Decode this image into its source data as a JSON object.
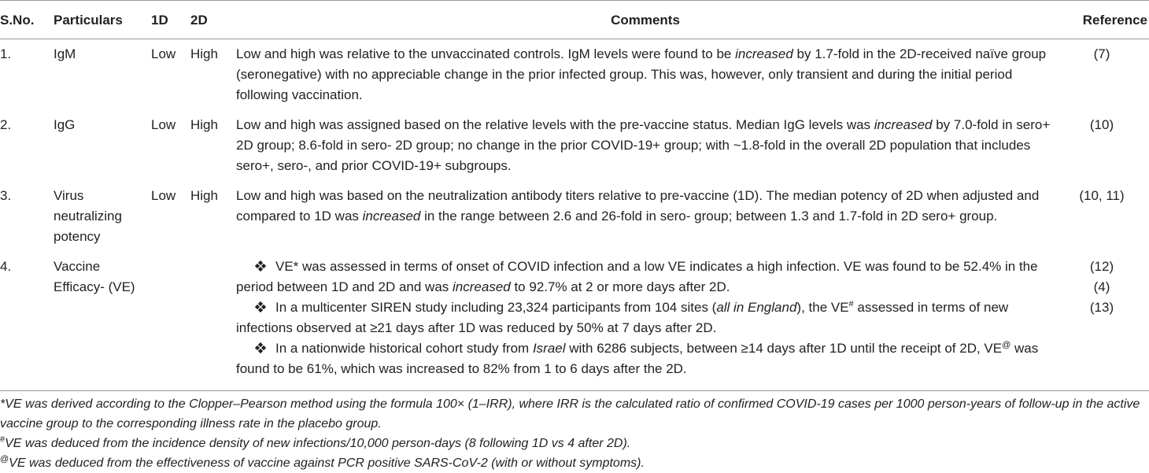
{
  "table": {
    "headers": [
      "S.No.",
      "Particulars",
      "1D",
      "2D",
      "Comments",
      "Reference"
    ],
    "rows": [
      {
        "sno": "1.",
        "particulars": "IgM",
        "d1": "Low",
        "d2": "High",
        "comments": [
          [
            {
              "text": "Low and high was relative to the unvaccinated controls. IgM levels were found to be "
            },
            {
              "text": "increased",
              "italic": true
            },
            {
              "text": " by 1.7-fold in the 2D-received naïve group (seronegative) with no appreciable change in the prior infected group. This was, however, only transient and during the initial period following vaccination."
            }
          ]
        ],
        "reference": [
          "(7)"
        ]
      },
      {
        "sno": "2.",
        "particulars": "IgG",
        "d1": "Low",
        "d2": "High",
        "comments": [
          [
            {
              "text": "Low and high was assigned based on the relative levels with the pre-vaccine status. Median IgG levels was "
            },
            {
              "text": "increased",
              "italic": true
            },
            {
              "text": " by 7.0-fold in sero+ 2D group; 8.6-fold in sero- 2D group; no change in the prior COVID-19+ group; with ~1.8-fold in the overall 2D population that includes sero+, sero-, and prior COVID-19+ subgroups."
            }
          ]
        ],
        "reference": [
          "(10)"
        ]
      },
      {
        "sno": "3.",
        "particulars": "Virus neutralizing potency",
        "d1": "Low",
        "d2": "High",
        "comments": [
          [
            {
              "text": "Low and high was based on the neutralization antibody titers relative to pre-vaccine (1D). The median potency of 2D when adjusted and compared to 1D was "
            },
            {
              "text": "increased",
              "italic": true
            },
            {
              "text": " in the range between 2.6 and 26-fold in sero- group; between 1.3 and 1.7-fold in 2D sero+ group."
            }
          ]
        ],
        "reference": [
          "(10, 11)"
        ]
      },
      {
        "sno": "4.",
        "particulars": "Vaccine Efficacy- (VE)",
        "d1": null,
        "d2": null,
        "comments": [
          [
            {
              "text": "VE* was assessed in terms of onset of COVID infection and a low VE indicates a high infection. VE was found to be 52.4% in the period between 1D and 2D and was "
            },
            {
              "text": "increased",
              "italic": true
            },
            {
              "text": " to 92.7% at 2 or more days after 2D."
            }
          ],
          [
            {
              "text": "In a multicenter SIREN study including 23,324 participants from 104 sites ("
            },
            {
              "text": "all in England",
              "italic": true
            },
            {
              "text": "), the VE"
            },
            {
              "text": "#",
              "sup": true
            },
            {
              "text": " assessed in terms of new infections observed at ≥21 days after 1D was reduced by 50% at 7 days after 2D."
            }
          ],
          [
            {
              "text": "In a nationwide historical cohort study from "
            },
            {
              "text": "Israel",
              "italic": true
            },
            {
              "text": " with 6286 subjects, between ≥14 days after 1D until the receipt of 2D, VE"
            },
            {
              "text": "@",
              "sup": true
            },
            {
              "text": " was found to be 61%, which was increased to 82% from 1 to 6 days after the 2D."
            }
          ]
        ],
        "reference": [
          "(12)",
          "(4)",
          "(13)"
        ]
      }
    ],
    "footnotes": [
      [
        {
          "text": "*VE was derived according to the Clopper–Pearson method using the formula 100× (1–IRR), where IRR is the calculated ratio of confirmed COVID-19 cases per 1000 person-years of follow-up in the active vaccine group to the corresponding illness rate in the placebo group.",
          "italic": true
        }
      ],
      [
        {
          "text": "#",
          "sup": true
        },
        {
          "text": "VE was deduced from the incidence density of new infections/10,000 person-days (8 following 1D vs 4 after 2D).",
          "italic": true
        }
      ],
      [
        {
          "text": "@",
          "sup": true
        },
        {
          "text": "VE was deduced from the effectiveness of vaccine against PCR positive SARS-CoV-2 (with or without symptoms).",
          "italic": true
        }
      ]
    ]
  }
}
